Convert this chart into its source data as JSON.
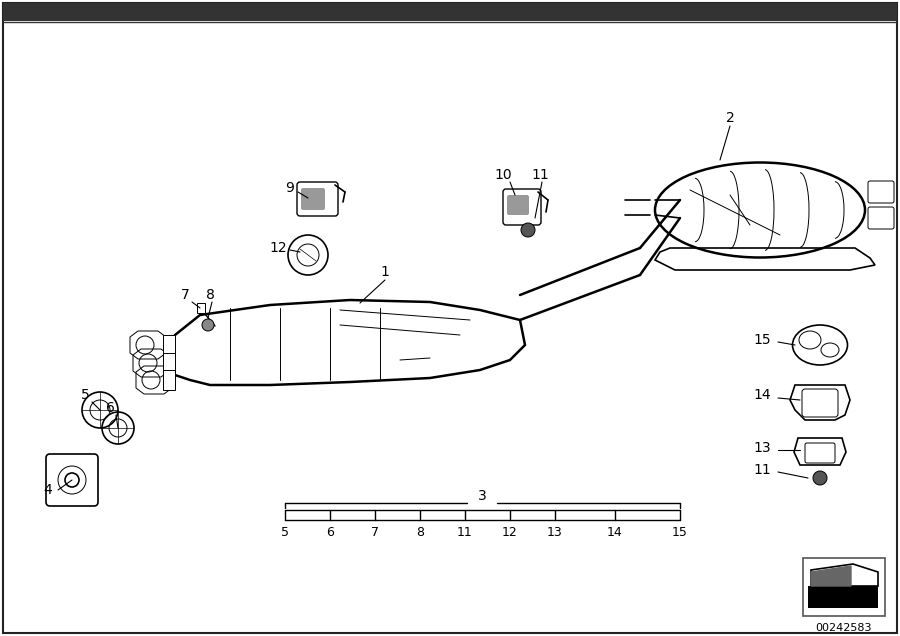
{
  "bg_color": "#ffffff",
  "border_color": "#333333",
  "part_number": "00242583",
  "scale_ticks": [
    "5",
    "6",
    "7",
    "8",
    "11",
    "12",
    "13",
    "14",
    "15"
  ],
  "text_color": "#000000",
  "line_color": "#000000",
  "thin_line": 0.7,
  "thick_line": 1.8,
  "medium_line": 1.2
}
